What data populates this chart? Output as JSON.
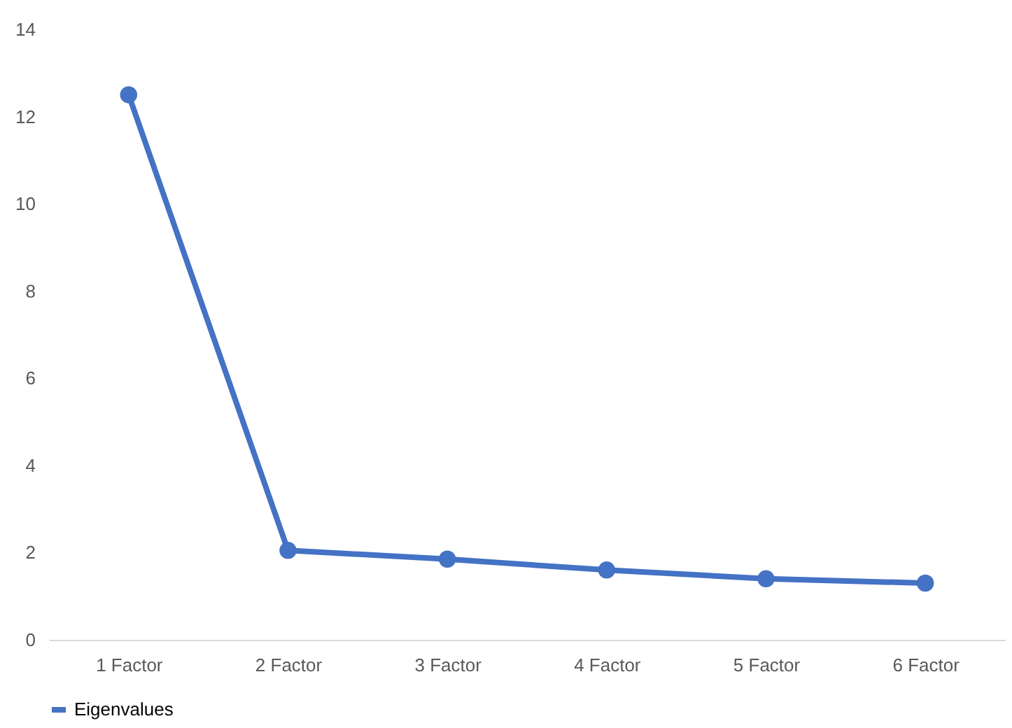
{
  "chart_data": {
    "type": "line",
    "categories": [
      "1 Factor",
      "2 Factor",
      "3 Factor",
      "4 Factor",
      "5 Factor",
      "6 Factor"
    ],
    "series": [
      {
        "name": "Eigenvalues",
        "color": "#4472c4",
        "values": [
          12.5,
          2.05,
          1.85,
          1.6,
          1.4,
          1.3
        ]
      }
    ],
    "ylim": [
      0,
      14
    ],
    "yticks": [
      0,
      2,
      4,
      6,
      8,
      10,
      12,
      14
    ],
    "grid": false,
    "legend": "bottom",
    "marker": "circle",
    "line_style": "solid"
  }
}
